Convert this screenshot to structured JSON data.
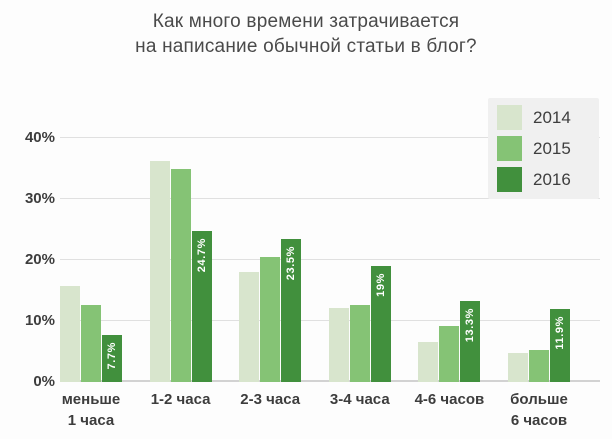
{
  "title": {
    "line1": "Как много времени затрачивается",
    "line2": "на написание обычной статьи в блог?"
  },
  "chart_data": {
    "type": "bar",
    "title": "Как много времени затрачивается на написание обычной статьи в блог?",
    "categories": [
      "меньше\n1 часа",
      "1-2 часа",
      "2-3 часа",
      "3-4 часа",
      "4-6 часов",
      "больше\n6 часов"
    ],
    "series": [
      {
        "name": "2014",
        "color": "#d8e5cd",
        "values": [
          15.8,
          36.3,
          18.0,
          12.1,
          6.5,
          4.8
        ],
        "labels": [
          "",
          "",
          "",
          "",
          "",
          ""
        ]
      },
      {
        "name": "2015",
        "color": "#85c375",
        "values": [
          12.6,
          34.9,
          20.5,
          12.6,
          9.2,
          5.2
        ],
        "labels": [
          "",
          "",
          "",
          "",
          "",
          ""
        ]
      },
      {
        "name": "2016",
        "color": "#41903d",
        "values": [
          7.7,
          24.7,
          23.5,
          19.0,
          13.3,
          11.9
        ],
        "labels": [
          "7.7%",
          "24.7%",
          "23.5%",
          "19%",
          "13.3%",
          "11.9%"
        ]
      }
    ],
    "y_ticks": [
      "0%",
      "10%",
      "20%",
      "30%",
      "40%"
    ],
    "ylim": [
      0,
      43.8
    ],
    "grid": true,
    "legend_position": "top-right",
    "value_label_color": "#ffffff"
  },
  "colors": {
    "background": "#fdfdfd",
    "gridline": "#e0e0e0",
    "axis_baseline": "#d2d2d2",
    "text": "#3d3d3d",
    "legend_background": "#f0f0f0"
  }
}
